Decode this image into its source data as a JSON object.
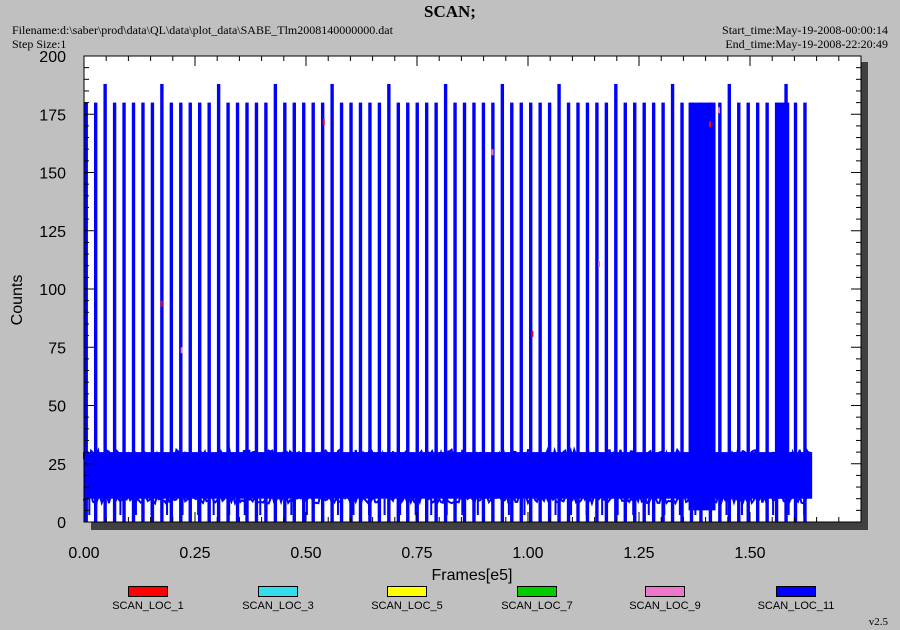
{
  "header": {
    "title": "SCAN;",
    "filename": "Filename:d:\\saber\\prod\\data\\QL\\data\\plot_data\\SABE_Tlm2008140000000.dat",
    "step_size": "Step Size:1",
    "start_time": "Start_time:May-19-2008-00:00:14",
    "end_time": "End_time:May-19-2008-22:20:49"
  },
  "version": "v2.5",
  "colors": {
    "background": "#c0c0c0",
    "plot_area": "#ffffff",
    "shadow": "#404040"
  },
  "chart_data": {
    "type": "line",
    "xlabel": "Frames[e5]",
    "ylabel": "Counts",
    "xlim": [
      0,
      1.75
    ],
    "ylim": [
      0,
      200
    ],
    "xticks": [
      0.0,
      0.25,
      0.5,
      0.75,
      1.0,
      1.25,
      1.5
    ],
    "xtick_labels": [
      "0.00",
      "0.25",
      "0.50",
      "0.75",
      "1.00",
      "1.25",
      "1.50"
    ],
    "yticks": [
      0,
      25,
      50,
      75,
      100,
      125,
      150,
      175,
      200
    ],
    "ytick_labels": [
      "0",
      "25",
      "50",
      "75",
      "100",
      "125",
      "150",
      "175",
      "200"
    ],
    "grid": false,
    "legend_position": "bottom",
    "series": [
      {
        "name": "SCAN_LOC_1",
        "color": "#ff0000"
      },
      {
        "name": "SCAN_LOC_3",
        "color": "#33ddee"
      },
      {
        "name": "SCAN_LOC_5",
        "color": "#ffff00"
      },
      {
        "name": "SCAN_LOC_7",
        "color": "#00cc00"
      },
      {
        "name": "SCAN_LOC_9",
        "color": "#ee77cc"
      },
      {
        "name": "SCAN_LOC_11",
        "color": "#0000ff"
      }
    ],
    "description_values": {
      "scan_band_low": 10,
      "scan_band_high": 30,
      "spike_peak": 180,
      "tall_spike_peak": 188,
      "data_end": 1.64
    }
  }
}
